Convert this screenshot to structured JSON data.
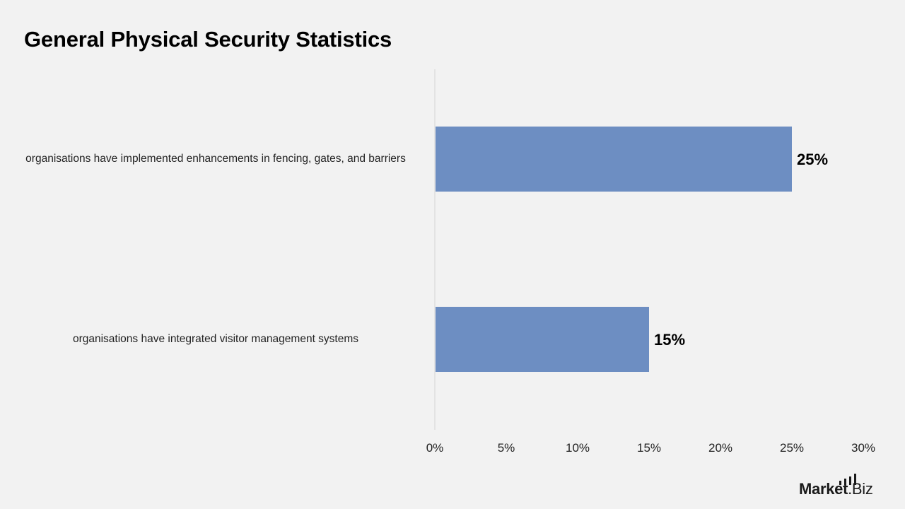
{
  "title": "General Physical Security Statistics",
  "colors": {
    "bar": "#6d8ec2",
    "background": "#f2f2f2",
    "axis": "#d4d4d4",
    "text": "#000000"
  },
  "chart_data": {
    "type": "bar",
    "orientation": "horizontal",
    "title": "General Physical Security Statistics",
    "categories": [
      "organisations have implemented enhancements in fencing, gates, and barriers",
      "organisations have integrated visitor management systems"
    ],
    "values": [
      25,
      15
    ],
    "data_labels": [
      "25%",
      "15%"
    ],
    "xlim": [
      0,
      30
    ],
    "x_ticks": [
      0,
      5,
      10,
      15,
      20,
      25,
      30
    ],
    "x_tick_labels": [
      "0%",
      "5%",
      "10%",
      "15%",
      "20%",
      "25%",
      "30%"
    ],
    "grid": false,
    "legend": "none"
  },
  "logo": {
    "text_bold": "Market",
    "text_regular": ".Biz",
    "icon": "bar-chart-icon"
  }
}
